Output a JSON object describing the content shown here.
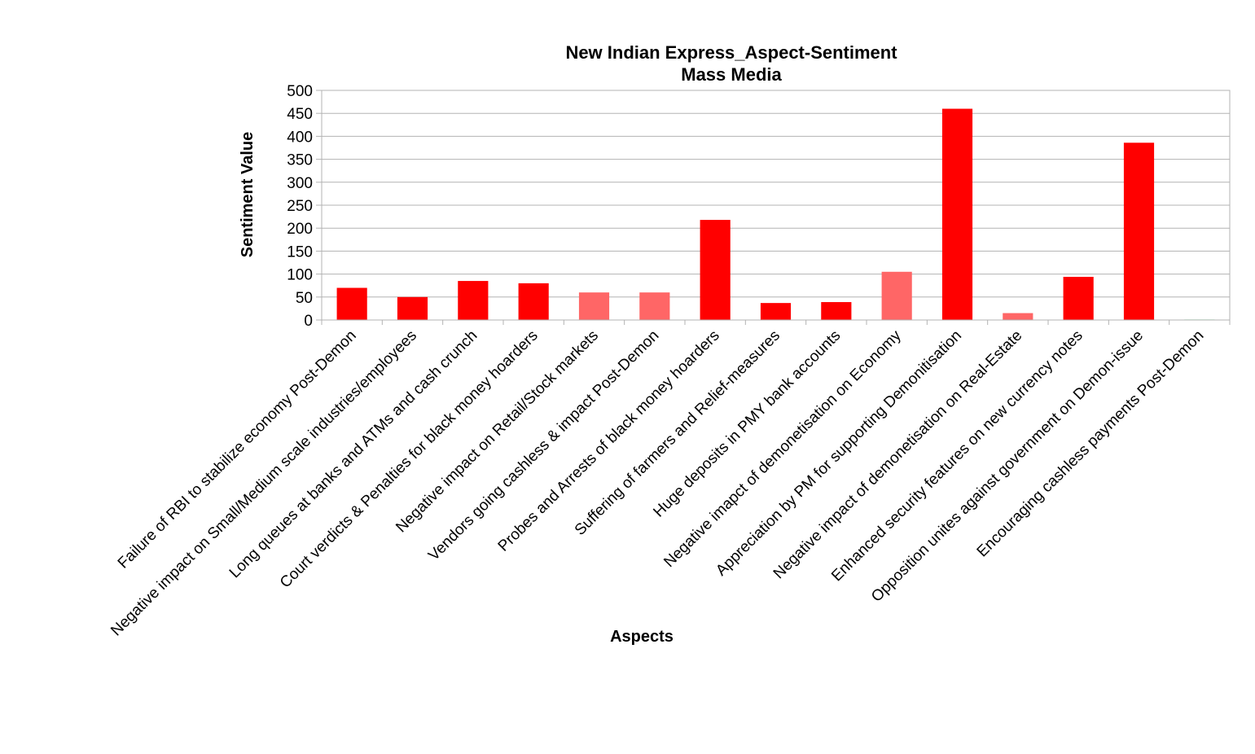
{
  "chart_data": {
    "type": "bar",
    "title": "New Indian Express_Aspect-Sentiment",
    "subtitle": "Mass Media",
    "xlabel": "Aspects",
    "ylabel": "Sentiment Value",
    "ylim": [
      0,
      500
    ],
    "yticks": [
      0,
      50,
      100,
      150,
      200,
      250,
      300,
      350,
      400,
      450,
      500
    ],
    "grid": true,
    "legend": "none",
    "categories": [
      "Failure of RBI to stabilize economy Post-Demon",
      "Negative impact on Small/Medium scale industries/employees",
      "Long queues at banks and ATMs and cash crunch",
      "Court verdicts & Penalties for black money hoarders",
      "Negative impact on Retail/Stock markets",
      "Vendors going cashless & impact Post-Demon",
      "Probes and Arrests of black money hoarders",
      "Suffering of farmers and Relief-measures",
      "Huge deposits in PMY bank accounts",
      "Negative imapct of demonetisation on Economy",
      "Appreciation by PM for supporting Demonitisation",
      "Negative impact of demonetisation on Real-Estate",
      "Enhanced security features on new currency notes",
      "Opposition unites against government on Demon-issue",
      "Encouraging cashless payments Post-Demon"
    ],
    "values": [
      70,
      50,
      85,
      80,
      60,
      60,
      218,
      37,
      39,
      105,
      460,
      15,
      94,
      386,
      1
    ],
    "colors": [
      "#ff0000",
      "#ff0000",
      "#ff0000",
      "#ff0000",
      "#ff6666",
      "#ff6666",
      "#ff0000",
      "#ff0000",
      "#ff0000",
      "#ff6666",
      "#ff0000",
      "#ff6666",
      "#ff0000",
      "#ff0000",
      "#00cc44"
    ]
  },
  "style": {
    "grid_color": "#b3b3b3",
    "axis_color": "#b3b3b3",
    "text_color": "#000000"
  }
}
